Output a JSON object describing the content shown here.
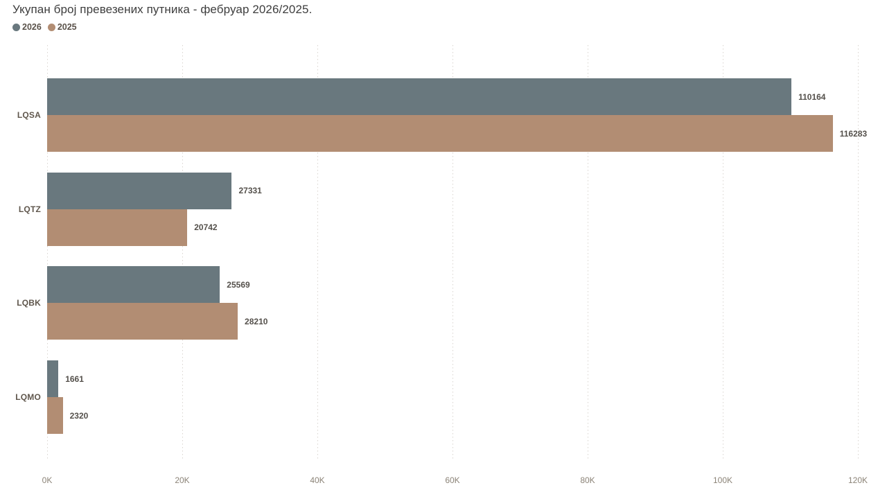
{
  "chart_data": {
    "type": "bar",
    "orientation": "horizontal",
    "title": "Укупан број превезених путника - фебруар 2026/2025.",
    "categories": [
      "LQSA",
      "LQTZ",
      "LQBK",
      "LQMO"
    ],
    "series": [
      {
        "name": "2026",
        "color": "#69787e",
        "values": [
          110164,
          27331,
          25569,
          1661
        ]
      },
      {
        "name": "2025",
        "color": "#b28d73",
        "values": [
          116283,
          20742,
          28210,
          2320
        ]
      }
    ],
    "xlabel": "",
    "ylabel": "",
    "xlim": [
      0,
      120000
    ],
    "x_ticks": [
      "0K",
      "20K",
      "40K",
      "60K",
      "80K",
      "100K",
      "120K"
    ],
    "x_tick_values": [
      0,
      20000,
      40000,
      60000,
      80000,
      100000,
      120000
    ],
    "grid": "vertical dotted gridlines",
    "legend_position": "top-left",
    "value_labels": "bold number at right end of each bar"
  }
}
